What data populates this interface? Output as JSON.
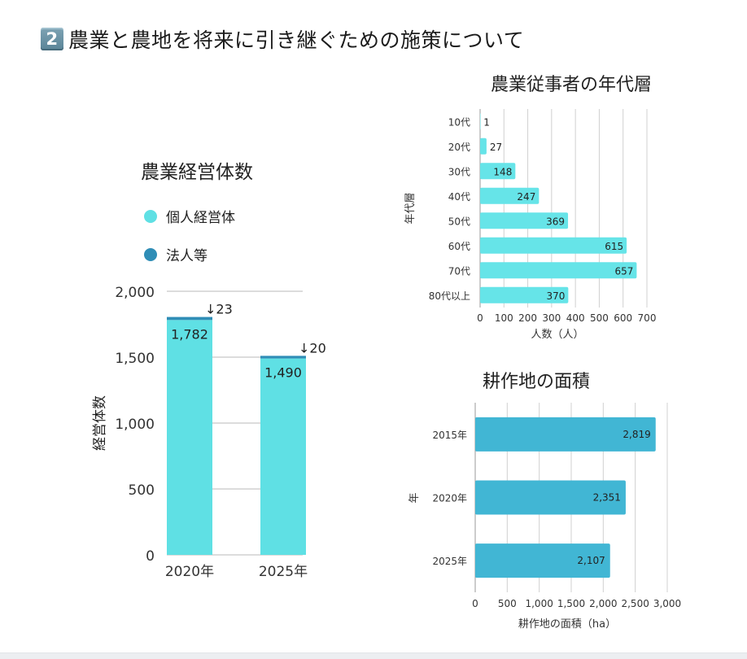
{
  "page": {
    "section_number": "2",
    "title": "農業と農地を将来に引き継ぐための施策について"
  },
  "colors": {
    "individual": "#5fe0e4",
    "corporate": "#2f8db6",
    "age_bar": "#66e4e8",
    "area_bar": "#41b6d4",
    "grid": "#d0d0d0"
  },
  "chart_data": [
    {
      "id": "management",
      "type": "bar",
      "stacked": true,
      "title": "農業経営体数",
      "categories": [
        "2020年",
        "2025年"
      ],
      "series": [
        {
          "name": "個人経営体",
          "values": [
            1782,
            1490
          ]
        },
        {
          "name": "法人等",
          "values": [
            23,
            20
          ]
        }
      ],
      "data_labels": [
        "1,782",
        "1,490"
      ],
      "top_labels": [
        "↓23",
        "↓20"
      ],
      "ylabel": "経営体数",
      "xlabel": "",
      "ylim": [
        0,
        2000
      ],
      "yticks": [
        0,
        500,
        1000,
        1500,
        2000
      ],
      "ytick_labels": [
        "0",
        "500",
        "1,000",
        "1,500",
        "2,000"
      ],
      "grid": true,
      "legend": "top-left",
      "legend_items": [
        "個人経営体",
        "法人等"
      ]
    },
    {
      "id": "age",
      "type": "bar",
      "orientation": "horizontal",
      "title": "農業従事者の年代層",
      "categories": [
        "10代",
        "20代",
        "30代",
        "40代",
        "50代",
        "60代",
        "70代",
        "80代以上"
      ],
      "values": [
        1,
        27,
        148,
        247,
        369,
        615,
        657,
        370
      ],
      "data_labels": [
        "1",
        "27",
        "148",
        "247",
        "369",
        "615",
        "657",
        "370"
      ],
      "xlabel": "人数（人）",
      "ylabel": "年代層",
      "xlim": [
        0,
        700
      ],
      "xticks": [
        0,
        100,
        200,
        300,
        400,
        500,
        600,
        700
      ],
      "xtick_labels": [
        "0",
        "100",
        "200",
        "300",
        "400",
        "500",
        "600",
        "700"
      ],
      "grid": true
    },
    {
      "id": "area",
      "type": "bar",
      "orientation": "horizontal",
      "title": "耕作地の面積",
      "categories": [
        "2015年",
        "2020年",
        "2025年"
      ],
      "values": [
        2819,
        2351,
        2107
      ],
      "data_labels": [
        "2,819",
        "2,351",
        "2,107"
      ],
      "xlabel": "耕作地の面積（ha）",
      "ylabel": "年",
      "xlim": [
        0,
        3000
      ],
      "xticks": [
        0,
        500,
        1000,
        1500,
        2000,
        2500,
        3000
      ],
      "xtick_labels": [
        "0",
        "500",
        "1,000",
        "1,500",
        "2,000",
        "2,500",
        "3,000"
      ],
      "grid": true
    }
  ]
}
